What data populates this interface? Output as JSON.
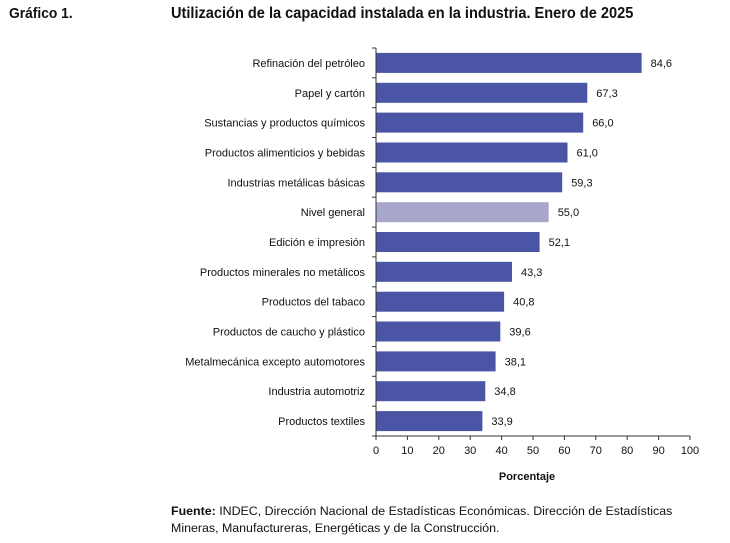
{
  "header": {
    "chart_number": "Gráfico 1.",
    "title": "Utilización de la capacidad instalada en la industria. Enero de 2025"
  },
  "source": {
    "label": "Fuente:",
    "text": "INDEC, Dirección Nacional de Estadísticas Económicas. Dirección de Estadísticas Mineras, Manufactureras, Energéticas y de la Construcción."
  },
  "colors": {
    "bar": "#4a55a6",
    "highlight_bar": "#a7a7cc",
    "axis": "#333333",
    "text": "#111111"
  },
  "chart_data": {
    "type": "bar",
    "orientation": "horizontal",
    "categories": [
      "Refinación del petróleo",
      "Papel y cartón",
      "Sustancias y productos químicos",
      "Productos alimenticios y bebidas",
      "Industrias metálicas básicas",
      "Nivel general",
      "Edición e impresión",
      "Productos minerales no metálicos",
      "Productos del tabaco",
      "Productos de caucho y plástico",
      "Metalmecánica excepto automotores",
      "Industria automotriz",
      "Productos textiles"
    ],
    "values": [
      84.6,
      67.3,
      66.0,
      61.0,
      59.3,
      55.0,
      52.1,
      43.3,
      40.8,
      39.6,
      38.1,
      34.8,
      33.9
    ],
    "value_labels": [
      "84,6",
      "67,3",
      "66,0",
      "61,0",
      "59,3",
      "55,0",
      "52,1",
      "43,3",
      "40,8",
      "39,6",
      "38,1",
      "34,8",
      "33,9"
    ],
    "highlight": "Nivel general",
    "xlabel": "Porcentaje",
    "ylabel": "",
    "xlim": [
      0,
      100
    ],
    "xticks": [
      0,
      10,
      20,
      30,
      40,
      50,
      60,
      70,
      80,
      90,
      100
    ],
    "grid": false,
    "legend": "none"
  }
}
